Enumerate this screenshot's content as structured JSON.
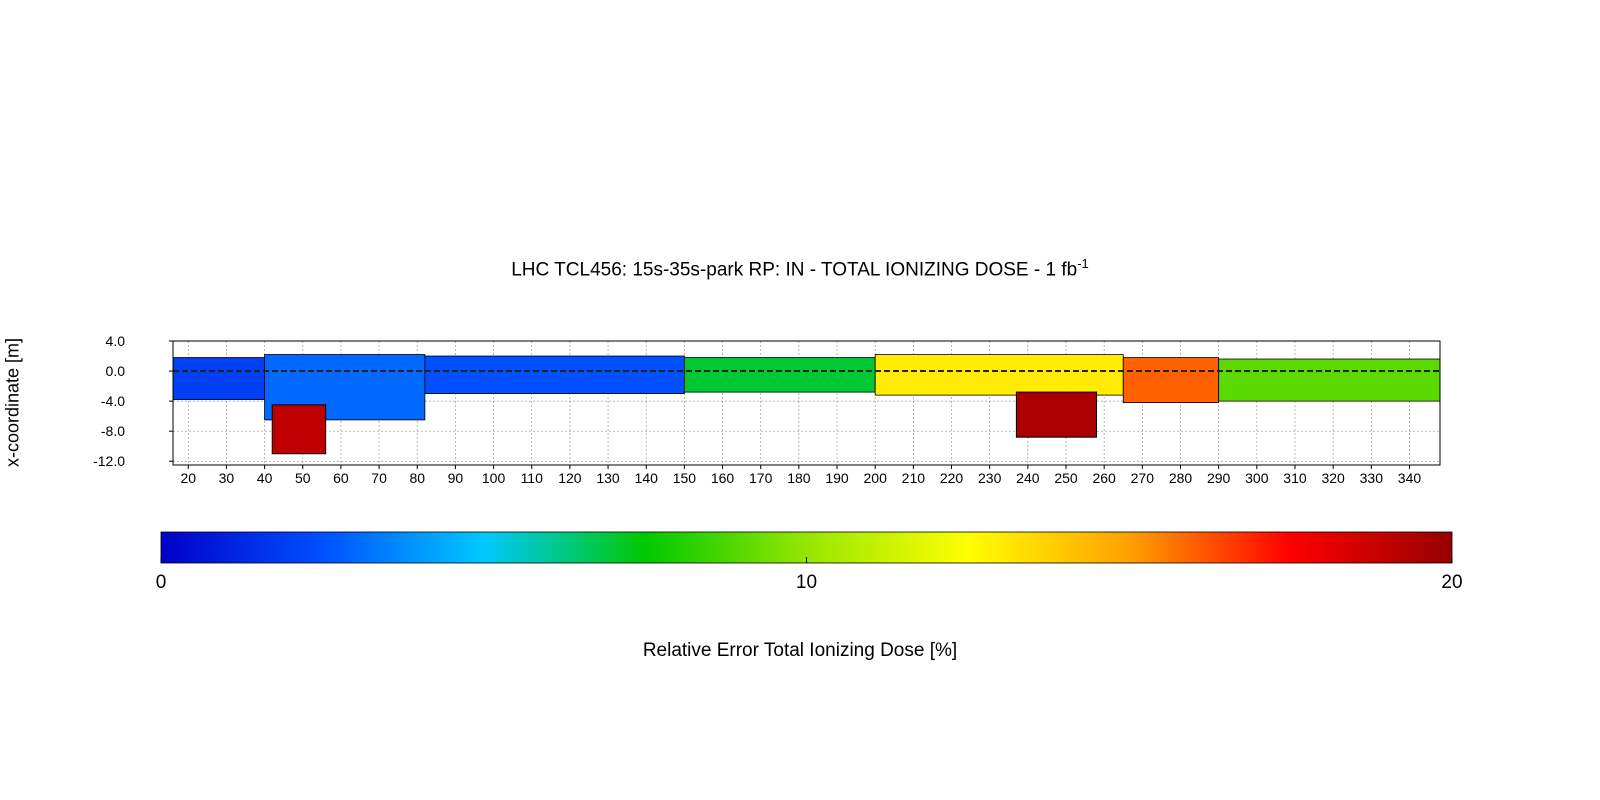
{
  "chart_data": {
    "type": "heatmap",
    "title": "LHC TCL456: 15s-35s-park RP: IN - TOTAL IONIZING DOSE - 1 fb",
    "title_superscript": "-1",
    "ylabel": "x-coordinate [m]",
    "xlabel": "",
    "x_ticks": [
      20,
      30,
      40,
      50,
      60,
      70,
      80,
      90,
      100,
      110,
      120,
      130,
      140,
      150,
      160,
      170,
      180,
      190,
      200,
      210,
      220,
      230,
      240,
      250,
      260,
      270,
      280,
      290,
      300,
      310,
      320,
      330,
      340
    ],
    "y_ticks": [
      "4.0",
      "0.0",
      "-4.0",
      "-8.0",
      "-12.0"
    ],
    "xlim": [
      16,
      348
    ],
    "ylim": [
      -12.5,
      4.0
    ],
    "grid": true,
    "beamline_profile": [
      {
        "x": [
          16,
          40
        ],
        "y_top": 1.8,
        "y_bottom": -3.8,
        "level": 2
      },
      {
        "x": [
          40,
          82
        ],
        "y_top": 2.2,
        "y_bottom": -6.5,
        "level": 3
      },
      {
        "x": [
          82,
          150
        ],
        "y_top": 2.0,
        "y_bottom": -3.0,
        "level": 2.5
      },
      {
        "x": [
          150,
          200
        ],
        "y_top": 1.8,
        "y_bottom": -2.8,
        "level": 7
      },
      {
        "x": [
          200,
          265
        ],
        "y_top": 2.2,
        "y_bottom": -3.2,
        "level": 13
      },
      {
        "x": [
          265,
          290
        ],
        "y_top": 1.8,
        "y_bottom": -4.2,
        "level": 16
      },
      {
        "x": [
          290,
          348
        ],
        "y_top": 1.6,
        "y_bottom": -4.0,
        "level": 9
      }
    ],
    "high_error_blocks": [
      {
        "x": [
          42,
          56
        ],
        "y": [
          -4.5,
          -11.0
        ],
        "level": 19
      },
      {
        "x": [
          237,
          258
        ],
        "y": [
          -2.8,
          -8.8
        ],
        "level": 19.5
      }
    ],
    "colorbar": {
      "title": "Relative Error Total Ionizing Dose [%]",
      "ticks": [
        "0",
        "10",
        "20"
      ],
      "range": [
        0,
        20
      ],
      "colors": [
        "#0000c8",
        "#0050ff",
        "#00c8ff",
        "#00c800",
        "#96e600",
        "#ffff00",
        "#ffa000",
        "#ff0000",
        "#960000"
      ]
    }
  }
}
